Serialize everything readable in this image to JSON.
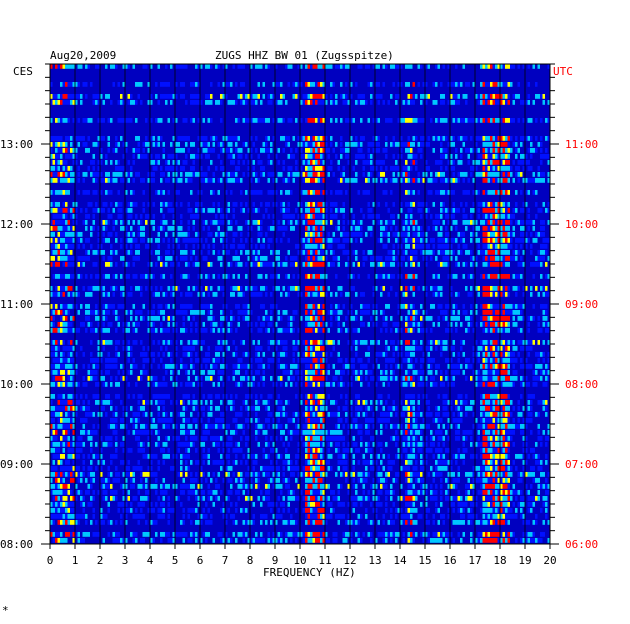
{
  "chart_data": {
    "type": "heatmap",
    "date": "Aug20,2009",
    "title": "ZUGS HHZ BW 01 (Zugsspitze)",
    "left_timezone": "CES",
    "right_timezone": "UTC",
    "xlabel": "FREQUENCY (HZ)",
    "xlim": [
      0,
      20
    ],
    "x_ticks": [
      "0",
      "1",
      "2",
      "3",
      "4",
      "5",
      "6",
      "7",
      "8",
      "9",
      "10",
      "11",
      "12",
      "13",
      "14",
      "15",
      "16",
      "17",
      "18",
      "19",
      "20"
    ],
    "y_range_hours_cest": [
      8,
      14
    ],
    "left_ticks": [
      {
        "label": "13:00",
        "hour": 13
      },
      {
        "label": "12:00",
        "hour": 12
      },
      {
        "label": "11:00",
        "hour": 11
      },
      {
        "label": "10:00",
        "hour": 10
      },
      {
        "label": "09:00",
        "hour": 9
      },
      {
        "label": "08:00",
        "hour": 8
      }
    ],
    "right_ticks": [
      {
        "label": "11:00",
        "hour": 13
      },
      {
        "label": "10:00",
        "hour": 12
      },
      {
        "label": "09:00",
        "hour": 11
      },
      {
        "label": "08:00",
        "hour": 10
      },
      {
        "label": "07:00",
        "hour": 9
      },
      {
        "label": "06:00",
        "hour": 8
      }
    ],
    "energy_bands_hz": [
      {
        "band": [
          0,
          1.0
        ],
        "level": "moderate"
      },
      {
        "band": [
          10.2,
          11.0
        ],
        "level": "high"
      },
      {
        "band": [
          14.2,
          14.6
        ],
        "level": "moderate"
      },
      {
        "band": [
          17.3,
          18.4
        ],
        "level": "high"
      }
    ],
    "colors": {
      "background": "#0000c0",
      "low": "#0010ff",
      "mid": "#00c8ff",
      "high": "#ffff00",
      "peak": "#ff0000",
      "right_axis": "#ff0000"
    }
  },
  "footnote": "*"
}
